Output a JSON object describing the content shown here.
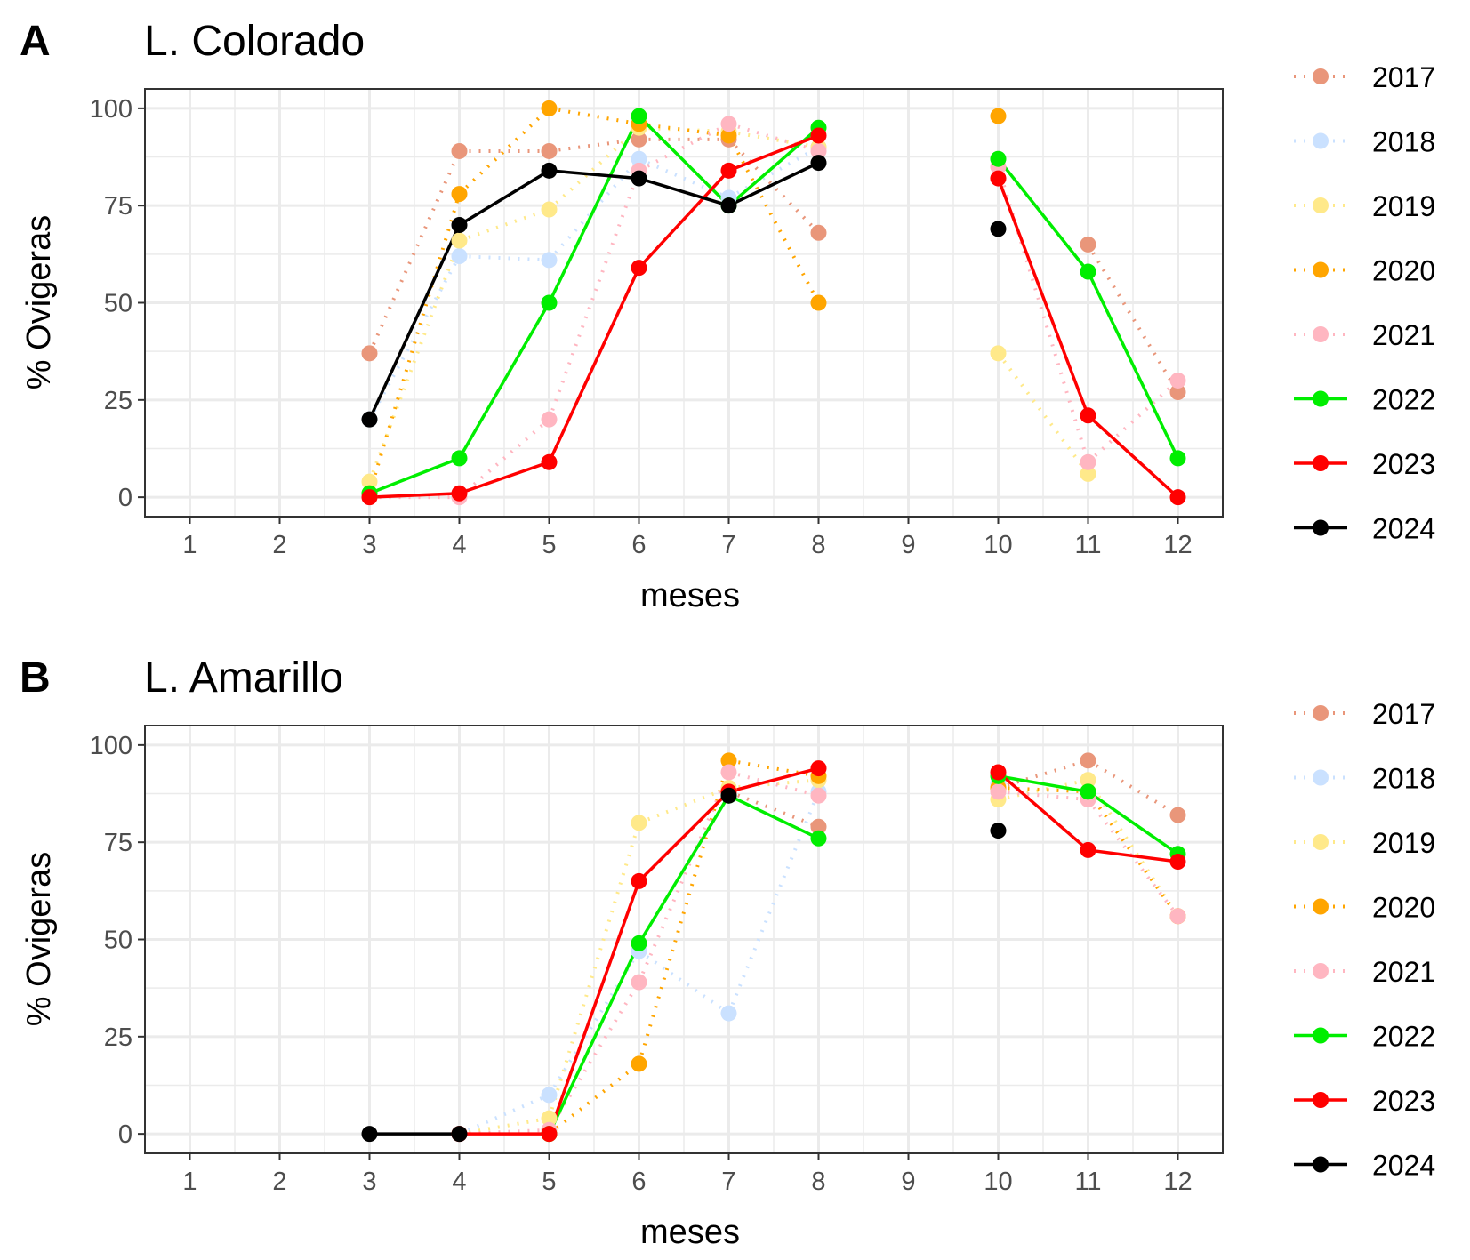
{
  "chart_data": [
    {
      "type": "line",
      "tag": "A",
      "title": "L. Colorado",
      "xlabel": "meses",
      "ylabel": "% Ovigeras",
      "x_ticks": [
        "1",
        "2",
        "3",
        "4",
        "5",
        "6",
        "7",
        "8",
        "9",
        "10",
        "11",
        "12"
      ],
      "y_ticks": [
        "0",
        "25",
        "50",
        "75",
        "100"
      ],
      "xlim": [
        0.5,
        12.5
      ],
      "ylim": [
        -5,
        105
      ],
      "grid": true,
      "legend_position": "right",
      "series": [
        {
          "name": "2017",
          "color": "#E9967A",
          "style": "dotted",
          "points": [
            [
              3,
              37
            ],
            [
              4,
              89
            ],
            [
              5,
              89
            ],
            [
              6,
              92
            ],
            [
              7,
              92
            ],
            [
              8,
              68
            ],
            [
              11,
              65
            ],
            [
              12,
              27
            ]
          ]
        },
        {
          "name": "2018",
          "color": "#CAE1FF",
          "style": "dotted",
          "points": [
            [
              3,
              20
            ],
            [
              4,
              62
            ],
            [
              5,
              61
            ],
            [
              6,
              87
            ],
            [
              7,
              77
            ],
            [
              8,
              90
            ],
            [
              10,
              87
            ]
          ]
        },
        {
          "name": "2019",
          "color": "#FFE98A",
          "style": "dotted",
          "points": [
            [
              3,
              4
            ],
            [
              4,
              66
            ],
            [
              5,
              74
            ],
            [
              6,
              95
            ],
            [
              7,
              94
            ],
            [
              8,
              90
            ],
            [
              10,
              37
            ],
            [
              11,
              6
            ]
          ]
        },
        {
          "name": "2020",
          "color": "#FFA500",
          "style": "dotted",
          "points": [
            [
              3,
              1
            ],
            [
              4,
              78
            ],
            [
              5,
              100
            ],
            [
              6,
              96
            ],
            [
              7,
              93
            ],
            [
              8,
              50
            ],
            [
              10,
              98
            ]
          ]
        },
        {
          "name": "2021",
          "color": "#FFB6C1",
          "style": "dotted",
          "points": [
            [
              3,
              0
            ],
            [
              4,
              0
            ],
            [
              5,
              20
            ],
            [
              6,
              84
            ],
            [
              7,
              96
            ],
            [
              8,
              89
            ],
            [
              10,
              85
            ],
            [
              11,
              9
            ],
            [
              12,
              30
            ]
          ]
        },
        {
          "name": "2022",
          "color": "#00EE00",
          "style": "solid",
          "points": [
            [
              3,
              1
            ],
            [
              4,
              10
            ],
            [
              5,
              50
            ],
            [
              6,
              98
            ],
            [
              7,
              75
            ],
            [
              8,
              95
            ],
            [
              10,
              87
            ],
            [
              11,
              58
            ],
            [
              12,
              10
            ]
          ]
        },
        {
          "name": "2023",
          "color": "#FF0000",
          "style": "solid",
          "points": [
            [
              3,
              0
            ],
            [
              4,
              1
            ],
            [
              5,
              9
            ],
            [
              6,
              59
            ],
            [
              7,
              84
            ],
            [
              8,
              93
            ],
            [
              10,
              82
            ],
            [
              11,
              21
            ],
            [
              12,
              0
            ]
          ]
        },
        {
          "name": "2024",
          "color": "#000000",
          "style": "solid",
          "points": [
            [
              3,
              20
            ],
            [
              4,
              70
            ],
            [
              5,
              84
            ],
            [
              6,
              82
            ],
            [
              7,
              75
            ],
            [
              8,
              86
            ],
            [
              10,
              69
            ]
          ]
        }
      ]
    },
    {
      "type": "line",
      "tag": "B",
      "title": "L. Amarillo",
      "xlabel": "meses",
      "ylabel": "% Ovigeras",
      "x_ticks": [
        "1",
        "2",
        "3",
        "4",
        "5",
        "6",
        "7",
        "8",
        "9",
        "10",
        "11",
        "12"
      ],
      "y_ticks": [
        "0",
        "25",
        "50",
        "75",
        "100"
      ],
      "xlim": [
        0.5,
        12.5
      ],
      "ylim": [
        -5,
        105
      ],
      "grid": true,
      "legend_position": "right",
      "series": [
        {
          "name": "2017",
          "color": "#E9967A",
          "style": "dotted",
          "points": [
            [
              7,
              88
            ],
            [
              8,
              79
            ],
            [
              10,
              89
            ],
            [
              11,
              96
            ],
            [
              12,
              82
            ]
          ]
        },
        {
          "name": "2018",
          "color": "#CAE1FF",
          "style": "dotted",
          "points": [
            [
              4,
              0
            ],
            [
              5,
              10
            ],
            [
              6,
              47
            ],
            [
              7,
              31
            ],
            [
              8,
              88
            ],
            [
              10,
              90
            ]
          ]
        },
        {
          "name": "2019",
          "color": "#FFE98A",
          "style": "dotted",
          "points": [
            [
              4,
              0
            ],
            [
              5,
              4
            ],
            [
              6,
              80
            ],
            [
              7,
              89
            ],
            [
              8,
              91
            ],
            [
              10,
              86
            ],
            [
              11,
              91
            ],
            [
              12,
              56
            ]
          ]
        },
        {
          "name": "2020",
          "color": "#FFA500",
          "style": "dotted",
          "points": [
            [
              5,
              0
            ],
            [
              6,
              18
            ],
            [
              7,
              96
            ],
            [
              8,
              92
            ],
            [
              10,
              89
            ],
            [
              11,
              88
            ],
            [
              12,
              56
            ]
          ]
        },
        {
          "name": "2021",
          "color": "#FFB6C1",
          "style": "dotted",
          "points": [
            [
              4,
              0
            ],
            [
              5,
              1
            ],
            [
              6,
              39
            ],
            [
              7,
              93
            ],
            [
              8,
              87
            ],
            [
              10,
              88
            ],
            [
              11,
              86
            ],
            [
              12,
              56
            ]
          ]
        },
        {
          "name": "2022",
          "color": "#00EE00",
          "style": "solid",
          "points": [
            [
              5,
              0
            ],
            [
              6,
              49
            ],
            [
              7,
              87
            ],
            [
              8,
              76
            ],
            [
              10,
              92
            ],
            [
              11,
              88
            ],
            [
              12,
              72
            ]
          ]
        },
        {
          "name": "2023",
          "color": "#FF0000",
          "style": "solid",
          "points": [
            [
              4,
              0
            ],
            [
              5,
              0
            ],
            [
              6,
              65
            ],
            [
              7,
              88
            ],
            [
              8,
              94
            ],
            [
              10,
              93
            ],
            [
              11,
              73
            ],
            [
              12,
              70
            ]
          ]
        },
        {
          "name": "2024",
          "color": "#000000",
          "style": "solid",
          "points": [
            [
              3,
              0
            ],
            [
              4,
              0
            ],
            [
              7,
              87
            ],
            [
              10,
              78
            ]
          ]
        }
      ]
    }
  ]
}
